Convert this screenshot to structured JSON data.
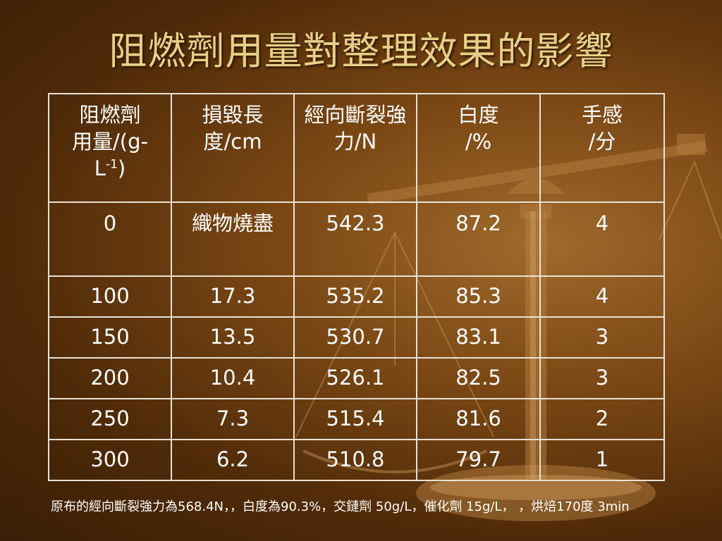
{
  "slide": {
    "title": "阻燃劑用量對整理效果的影響",
    "table": {
      "headers": [
        {
          "line1": "阻燃劑",
          "line2": "用量/(g-",
          "line3_pre": "L",
          "line3_sup1": "-1",
          "line3_post": ")"
        },
        {
          "text": "損毀長度/cm"
        },
        {
          "text": "經向斷裂強力/N"
        },
        {
          "line1": "白度",
          "line2": "/%"
        },
        {
          "line1": "手感",
          "line2": "/分"
        }
      ],
      "rows": [
        [
          "0",
          "織物燒盡",
          "542.3",
          "87.2",
          "4"
        ],
        [
          "100",
          "17.3",
          "535.2",
          "85.3",
          "4"
        ],
        [
          "150",
          "13.5",
          "530.7",
          "83.1",
          "3"
        ],
        [
          "200",
          "10.4",
          "526.1",
          "82.5",
          "3"
        ],
        [
          "250",
          "7.3",
          "515.4",
          "81.6",
          "2"
        ],
        [
          "300",
          "6.2",
          "510.8",
          "79.7",
          "1"
        ]
      ]
    },
    "note": "原布的經向斷裂強力為568.4N，，白度為90.3%，交鏈劑 50g/L，催化劑 15g/L， ，烘焙170度 3min"
  },
  "colors": {
    "background": "#6b3c0f",
    "title": "#e8cf87",
    "text": "#ffffff",
    "grid": "#e9e2d4"
  },
  "icons": [
    "balance-scale-icon"
  ]
}
